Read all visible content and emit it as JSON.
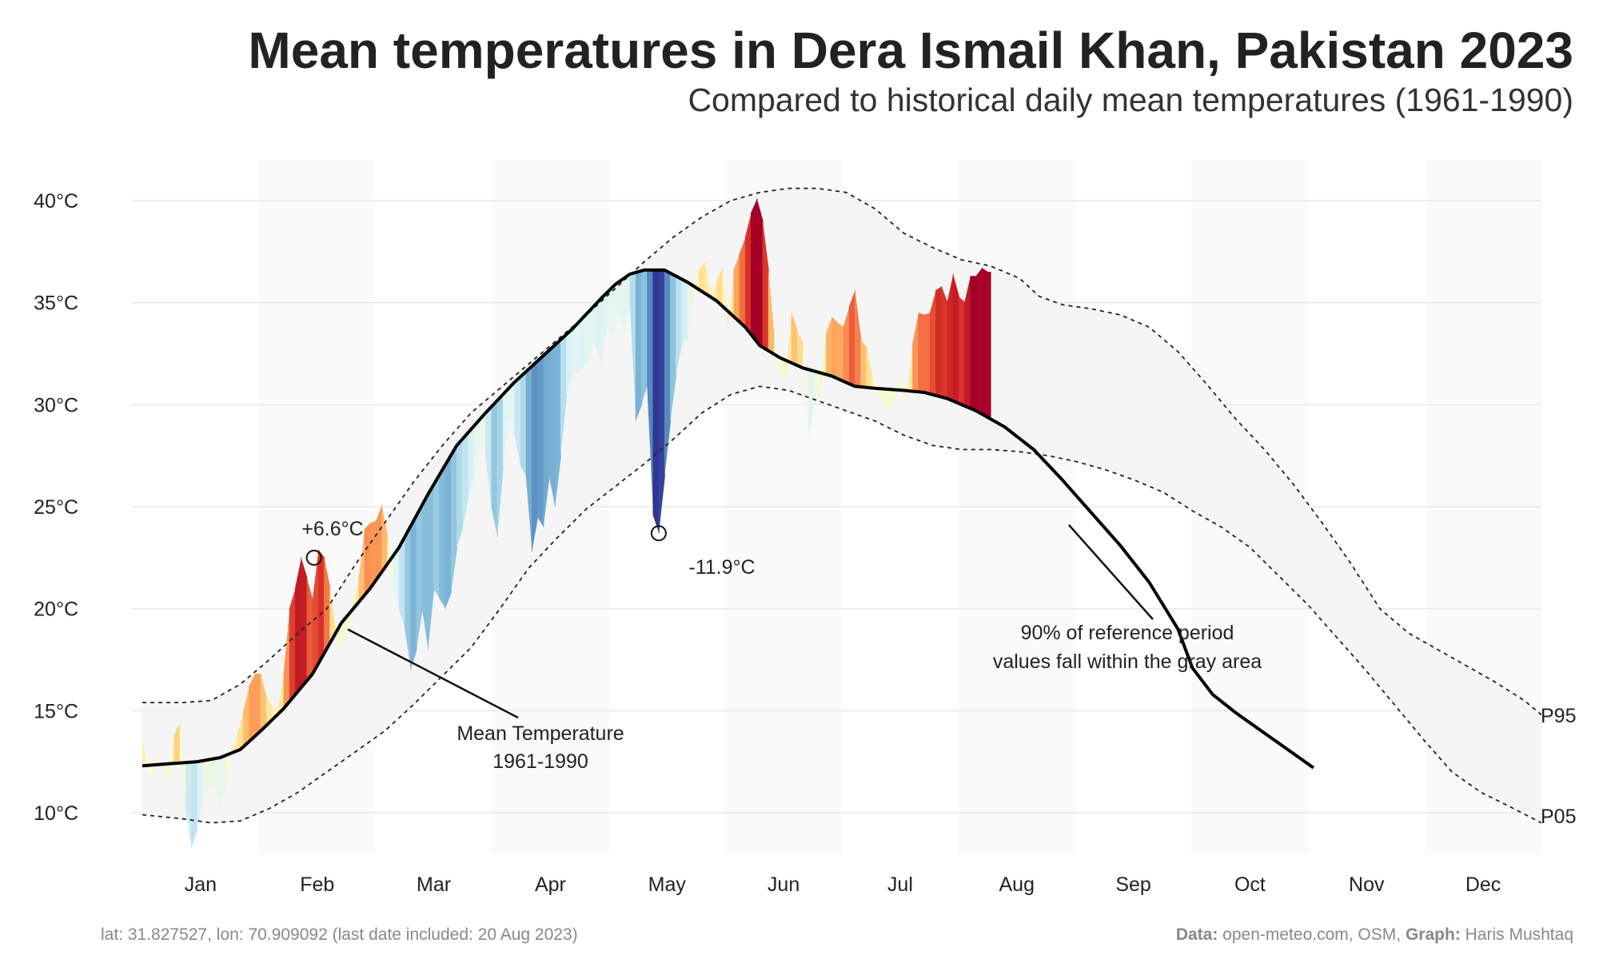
{
  "title": "Mean temperatures in Dera Ismail Khan, Pakistan 2023",
  "subtitle": "Compared to historical daily mean temperatures (1961-1990)",
  "footer": {
    "location": "lat: 31.827527, lon: 70.909092 (last date included: 20 Aug 2023)",
    "data_label": "Data:",
    "data_value": " open-meteo.com, OSM, ",
    "graph_label": "Graph:",
    "graph_value": " Haris Mushtaq"
  },
  "annotations": {
    "max": "+6.6°C",
    "min": "-11.9°C",
    "mean_label_1": "Mean Temperature",
    "mean_label_2": "1961-1990",
    "band_label_1": "90% of reference period",
    "band_label_2": "values fall within the gray area",
    "p95": "P95",
    "p05": "P05"
  },
  "colors": {
    "band": "#f5f5f5",
    "mean_line": "#000000",
    "percentile_line": "#222222",
    "grid": "#e6e8f0",
    "alt_month_shade": "#fafafa",
    "warm_scale": [
      "#ffffbf",
      "#fee090",
      "#fdae61",
      "#f46d43",
      "#d73027",
      "#a50026"
    ],
    "cool_scale": [
      "#ffffbf",
      "#e0f3f8",
      "#abd9e9",
      "#74add1",
      "#4575b4",
      "#313695"
    ]
  },
  "chart_data": {
    "type": "area",
    "ylim": [
      8,
      42
    ],
    "y_ticks": [
      10,
      15,
      20,
      25,
      30,
      35,
      40
    ],
    "y_tick_labels": [
      "10°C",
      "15°C",
      "20°C",
      "25°C",
      "30°C",
      "35°C",
      "40°C"
    ],
    "months": [
      "Jan",
      "Feb",
      "Mar",
      "Apr",
      "May",
      "Jun",
      "Jul",
      "Aug",
      "Sep",
      "Oct",
      "Nov",
      "Dec"
    ],
    "reference_mean": [
      [
        1,
        12.3
      ],
      [
        10,
        12.4
      ],
      [
        20,
        12.5
      ],
      [
        28,
        12.7
      ],
      [
        35,
        13.1
      ],
      [
        42,
        14.0
      ],
      [
        50,
        15.1
      ],
      [
        60,
        16.8
      ],
      [
        70,
        19.3
      ],
      [
        80,
        21.0
      ],
      [
        90,
        23.0
      ],
      [
        100,
        25.6
      ],
      [
        110,
        28.0
      ],
      [
        120,
        29.6
      ],
      [
        130,
        31.1
      ],
      [
        140,
        32.4
      ],
      [
        150,
        33.7
      ],
      [
        160,
        35.2
      ],
      [
        165,
        35.9
      ],
      [
        170,
        36.4
      ],
      [
        175,
        36.6
      ],
      [
        182,
        36.6
      ],
      [
        190,
        36.0
      ],
      [
        200,
        35.1
      ],
      [
        210,
        33.8
      ],
      [
        215,
        32.9
      ],
      [
        222,
        32.3
      ],
      [
        230,
        31.8
      ],
      [
        240,
        31.4
      ],
      [
        248,
        30.9
      ],
      [
        255,
        30.8
      ],
      [
        265,
        30.7
      ],
      [
        272,
        30.6
      ],
      [
        280,
        30.3
      ],
      [
        290,
        29.7
      ],
      [
        300,
        28.9
      ],
      [
        310,
        27.8
      ],
      [
        320,
        26.3
      ],
      [
        330,
        24.7
      ],
      [
        340,
        23.1
      ],
      [
        350,
        21.3
      ],
      [
        360,
        19.0
      ],
      [
        365,
        17.1
      ],
      [
        372,
        15.8
      ],
      [
        380,
        14.9
      ],
      [
        390,
        13.9
      ],
      [
        400,
        12.9
      ],
      [
        407,
        12.2
      ]
    ],
    "p95": [
      [
        1,
        15.4
      ],
      [
        15,
        15.4
      ],
      [
        25,
        15.5
      ],
      [
        35,
        16.3
      ],
      [
        45,
        17.5
      ],
      [
        55,
        18.8
      ],
      [
        65,
        20.0
      ],
      [
        75,
        22.2
      ],
      [
        85,
        24.2
      ],
      [
        95,
        26.2
      ],
      [
        105,
        28.0
      ],
      [
        115,
        29.6
      ],
      [
        125,
        30.8
      ],
      [
        135,
        32.0
      ],
      [
        145,
        33.2
      ],
      [
        155,
        34.4
      ],
      [
        165,
        35.7
      ],
      [
        175,
        37.0
      ],
      [
        185,
        38.2
      ],
      [
        195,
        39.2
      ],
      [
        205,
        40.0
      ],
      [
        215,
        40.4
      ],
      [
        225,
        40.6
      ],
      [
        235,
        40.6
      ],
      [
        245,
        40.4
      ],
      [
        255,
        39.6
      ],
      [
        265,
        38.4
      ],
      [
        275,
        37.7
      ],
      [
        285,
        37.1
      ],
      [
        295,
        36.8
      ],
      [
        305,
        36.2
      ],
      [
        312,
        35.3
      ],
      [
        320,
        34.9
      ],
      [
        330,
        34.7
      ],
      [
        340,
        34.4
      ],
      [
        350,
        33.8
      ],
      [
        360,
        32.6
      ],
      [
        370,
        31.0
      ],
      [
        380,
        29.3
      ],
      [
        390,
        27.8
      ],
      [
        400,
        26.1
      ],
      [
        410,
        24.2
      ],
      [
        420,
        22.2
      ],
      [
        430,
        20.0
      ],
      [
        440,
        18.8
      ],
      [
        450,
        18.0
      ],
      [
        460,
        17.2
      ],
      [
        470,
        16.4
      ],
      [
        480,
        15.5
      ],
      [
        486,
        14.8
      ]
    ],
    "p05": [
      [
        1,
        9.9
      ],
      [
        15,
        9.7
      ],
      [
        25,
        9.5
      ],
      [
        35,
        9.6
      ],
      [
        45,
        10.2
      ],
      [
        55,
        11.0
      ],
      [
        65,
        12.0
      ],
      [
        75,
        13.0
      ],
      [
        85,
        14.0
      ],
      [
        95,
        15.3
      ],
      [
        105,
        16.7
      ],
      [
        115,
        18.1
      ],
      [
        125,
        20.0
      ],
      [
        135,
        22.0
      ],
      [
        145,
        23.5
      ],
      [
        155,
        24.9
      ],
      [
        165,
        26.0
      ],
      [
        175,
        27.1
      ],
      [
        185,
        28.3
      ],
      [
        195,
        29.6
      ],
      [
        205,
        30.5
      ],
      [
        215,
        30.9
      ],
      [
        225,
        30.7
      ],
      [
        235,
        30.2
      ],
      [
        245,
        29.7
      ],
      [
        255,
        29.2
      ],
      [
        265,
        28.5
      ],
      [
        275,
        28.0
      ],
      [
        285,
        27.8
      ],
      [
        295,
        27.8
      ],
      [
        305,
        27.7
      ],
      [
        315,
        27.5
      ],
      [
        325,
        27.2
      ],
      [
        335,
        26.8
      ],
      [
        345,
        26.3
      ],
      [
        355,
        25.7
      ],
      [
        365,
        24.8
      ],
      [
        375,
        24.0
      ],
      [
        385,
        23.0
      ],
      [
        395,
        21.6
      ],
      [
        405,
        20.2
      ],
      [
        415,
        18.6
      ],
      [
        425,
        17.0
      ],
      [
        435,
        15.3
      ],
      [
        445,
        13.6
      ],
      [
        455,
        12.0
      ],
      [
        465,
        11.0
      ],
      [
        475,
        10.3
      ],
      [
        486,
        9.5
      ]
    ],
    "observed_2023": [
      [
        1,
        13.6
      ],
      [
        2,
        12.5
      ],
      [
        4,
        11.8
      ],
      [
        6,
        12.8
      ],
      [
        8,
        12.2
      ],
      [
        10,
        11.6
      ],
      [
        12,
        13.8
      ],
      [
        14,
        14.4
      ],
      [
        16,
        10.2
      ],
      [
        18,
        8.3
      ],
      [
        20,
        9.2
      ],
      [
        22,
        10.8
      ],
      [
        24,
        11.2
      ],
      [
        26,
        11.4
      ],
      [
        28,
        10.2
      ],
      [
        30,
        11.6
      ],
      [
        32,
        13.2
      ],
      [
        34,
        13.8
      ],
      [
        36,
        15.0
      ],
      [
        38,
        16.2
      ],
      [
        40,
        16.8
      ],
      [
        42,
        16.8
      ],
      [
        44,
        15.6
      ],
      [
        46,
        15.2
      ],
      [
        48,
        15.0
      ],
      [
        50,
        16.8
      ],
      [
        52,
        20.0
      ],
      [
        54,
        21.0
      ],
      [
        56,
        22.5
      ],
      [
        58,
        21.5
      ],
      [
        60,
        20.4
      ],
      [
        62,
        22.9
      ],
      [
        64,
        22.5
      ],
      [
        66,
        21.0
      ],
      [
        68,
        18.8
      ],
      [
        70,
        18.0
      ],
      [
        72,
        18.8
      ],
      [
        74,
        20.2
      ],
      [
        76,
        21.4
      ],
      [
        78,
        23.9
      ],
      [
        80,
        24.2
      ],
      [
        82,
        24.3
      ],
      [
        84,
        25.1
      ],
      [
        86,
        23.5
      ],
      [
        88,
        21.0
      ],
      [
        90,
        20.0
      ],
      [
        92,
        19.0
      ],
      [
        94,
        17.0
      ],
      [
        96,
        18.0
      ],
      [
        98,
        20.0
      ],
      [
        100,
        18.0
      ],
      [
        102,
        21.0
      ],
      [
        104,
        20.5
      ],
      [
        106,
        20.0
      ],
      [
        108,
        20.8
      ],
      [
        110,
        23.0
      ],
      [
        112,
        24.0
      ],
      [
        114,
        25.5
      ],
      [
        116,
        26.5
      ],
      [
        118,
        28.0
      ],
      [
        120,
        27.5
      ],
      [
        122,
        25.0
      ],
      [
        124,
        23.5
      ],
      [
        126,
        27.0
      ],
      [
        128,
        29.5
      ],
      [
        130,
        28.5
      ],
      [
        132,
        27.0
      ],
      [
        134,
        26.5
      ],
      [
        136,
        22.8
      ],
      [
        138,
        24.5
      ],
      [
        140,
        24.0
      ],
      [
        142,
        26.5
      ],
      [
        144,
        25.0
      ],
      [
        146,
        27.5
      ],
      [
        148,
        30.5
      ],
      [
        150,
        31.5
      ],
      [
        152,
        31.6
      ],
      [
        154,
        31.8
      ],
      [
        156,
        32.5
      ],
      [
        158,
        33.0
      ],
      [
        160,
        32.0
      ],
      [
        162,
        34.0
      ],
      [
        164,
        33.2
      ],
      [
        166,
        34.5
      ],
      [
        168,
        33.5
      ],
      [
        170,
        35.0
      ],
      [
        172,
        29.2
      ],
      [
        174,
        30.0
      ],
      [
        176,
        31.0
      ],
      [
        178,
        24.6
      ],
      [
        180,
        23.7
      ],
      [
        182,
        26.5
      ],
      [
        184,
        29.2
      ],
      [
        186,
        31.5
      ],
      [
        188,
        33.0
      ],
      [
        190,
        33.2
      ],
      [
        192,
        35.5
      ],
      [
        194,
        36.6
      ],
      [
        196,
        37.0
      ],
      [
        198,
        35.3
      ],
      [
        200,
        36.0
      ],
      [
        202,
        36.7
      ],
      [
        204,
        33.8
      ],
      [
        206,
        36.6
      ],
      [
        208,
        37.4
      ],
      [
        210,
        38.2
      ],
      [
        212,
        39.4
      ],
      [
        214,
        40.1
      ],
      [
        216,
        39.0
      ],
      [
        218,
        36.6
      ],
      [
        220,
        33.2
      ],
      [
        222,
        31.3
      ],
      [
        224,
        31.5
      ],
      [
        226,
        34.5
      ],
      [
        228,
        33.6
      ],
      [
        230,
        33.0
      ],
      [
        232,
        28.5
      ],
      [
        234,
        30.2
      ],
      [
        236,
        30.5
      ],
      [
        238,
        33.5
      ],
      [
        240,
        34.3
      ],
      [
        242,
        34.0
      ],
      [
        244,
        33.8
      ],
      [
        246,
        34.8
      ],
      [
        248,
        35.6
      ],
      [
        250,
        33.2
      ],
      [
        252,
        32.8
      ],
      [
        254,
        31.3
      ],
      [
        256,
        30.8
      ],
      [
        258,
        30.0
      ],
      [
        260,
        29.8
      ],
      [
        262,
        30.5
      ],
      [
        264,
        31.2
      ],
      [
        266,
        30.2
      ],
      [
        268,
        33.0
      ],
      [
        270,
        34.5
      ],
      [
        272,
        34.4
      ],
      [
        274,
        34.5
      ],
      [
        276,
        35.6
      ],
      [
        278,
        35.8
      ],
      [
        280,
        35.0
      ],
      [
        282,
        36.4
      ],
      [
        284,
        35.3
      ],
      [
        286,
        35.0
      ],
      [
        288,
        36.3
      ],
      [
        290,
        36.3
      ],
      [
        292,
        36.7
      ],
      [
        294,
        36.5
      ]
    ],
    "annotated_points": [
      {
        "x": 60.5,
        "y": 22.5,
        "label": "+6.6°C"
      },
      {
        "x": 180,
        "y": 23.7,
        "label": "-11.9°C"
      }
    ]
  }
}
